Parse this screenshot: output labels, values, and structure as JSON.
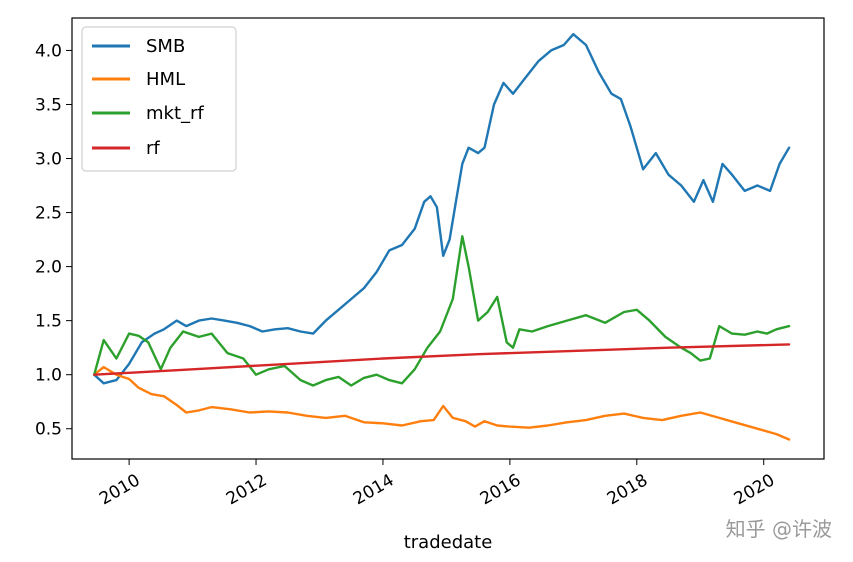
{
  "chart_data": {
    "type": "line",
    "title": "",
    "xlabel": "tradedate",
    "ylabel": "",
    "xlim": [
      2009.1,
      2020.95
    ],
    "ylim": [
      0.22,
      4.3
    ],
    "x_ticks": [
      2010,
      2012,
      2014,
      2016,
      2018,
      2020
    ],
    "x_tick_labels": [
      "2010",
      "2012",
      "2014",
      "2016",
      "2018",
      "2020"
    ],
    "y_ticks": [
      0.5,
      1.0,
      1.5,
      2.0,
      2.5,
      3.0,
      3.5,
      4.0
    ],
    "y_tick_labels": [
      "0.5",
      "1.0",
      "1.5",
      "2.0",
      "2.5",
      "3.0",
      "3.5",
      "4.0"
    ],
    "grid": false,
    "legend": "top-left",
    "series": [
      {
        "name": "SMB",
        "color": "#1f77b4",
        "x": [
          2009.45,
          2009.6,
          2009.8,
          2010.0,
          2010.2,
          2010.4,
          2010.55,
          2010.75,
          2010.9,
          2011.1,
          2011.3,
          2011.5,
          2011.7,
          2011.9,
          2012.1,
          2012.3,
          2012.5,
          2012.7,
          2012.9,
          2013.1,
          2013.3,
          2013.5,
          2013.7,
          2013.9,
          2014.1,
          2014.3,
          2014.5,
          2014.65,
          2014.75,
          2014.85,
          2014.95,
          2015.05,
          2015.15,
          2015.25,
          2015.35,
          2015.5,
          2015.6,
          2015.75,
          2015.9,
          2016.05,
          2016.25,
          2016.45,
          2016.65,
          2016.85,
          2017.0,
          2017.2,
          2017.4,
          2017.6,
          2017.75,
          2017.9,
          2018.1,
          2018.3,
          2018.5,
          2018.7,
          2018.9,
          2019.05,
          2019.2,
          2019.35,
          2019.5,
          2019.7,
          2019.9,
          2020.1,
          2020.25,
          2020.4
        ],
        "values": [
          1.0,
          0.92,
          0.95,
          1.1,
          1.3,
          1.38,
          1.42,
          1.5,
          1.45,
          1.5,
          1.52,
          1.5,
          1.48,
          1.45,
          1.4,
          1.42,
          1.43,
          1.4,
          1.38,
          1.5,
          1.6,
          1.7,
          1.8,
          1.95,
          2.15,
          2.2,
          2.35,
          2.6,
          2.65,
          2.55,
          2.1,
          2.25,
          2.6,
          2.95,
          3.1,
          3.05,
          3.1,
          3.5,
          3.7,
          3.6,
          3.75,
          3.9,
          4.0,
          4.05,
          4.15,
          4.05,
          3.8,
          3.6,
          3.55,
          3.3,
          2.9,
          3.05,
          2.85,
          2.75,
          2.6,
          2.8,
          2.6,
          2.95,
          2.85,
          2.7,
          2.75,
          2.7,
          2.95,
          3.1
        ]
      },
      {
        "name": "HML",
        "color": "#ff7f0e",
        "x": [
          2009.45,
          2009.6,
          2009.8,
          2010.0,
          2010.15,
          2010.35,
          2010.55,
          2010.75,
          2010.9,
          2011.1,
          2011.3,
          2011.6,
          2011.9,
          2012.2,
          2012.5,
          2012.8,
          2013.1,
          2013.4,
          2013.7,
          2014.0,
          2014.3,
          2014.6,
          2014.8,
          2014.95,
          2015.1,
          2015.3,
          2015.45,
          2015.6,
          2015.8,
          2016.0,
          2016.3,
          2016.6,
          2016.9,
          2017.2,
          2017.5,
          2017.8,
          2018.1,
          2018.4,
          2018.7,
          2019.0,
          2019.3,
          2019.6,
          2019.9,
          2020.2,
          2020.4
        ],
        "values": [
          1.0,
          1.07,
          1.0,
          0.96,
          0.88,
          0.82,
          0.8,
          0.72,
          0.65,
          0.67,
          0.7,
          0.68,
          0.65,
          0.66,
          0.65,
          0.62,
          0.6,
          0.62,
          0.56,
          0.55,
          0.53,
          0.57,
          0.58,
          0.71,
          0.6,
          0.57,
          0.52,
          0.57,
          0.53,
          0.52,
          0.51,
          0.53,
          0.56,
          0.58,
          0.62,
          0.64,
          0.6,
          0.58,
          0.62,
          0.65,
          0.6,
          0.55,
          0.5,
          0.45,
          0.4
        ]
      },
      {
        "name": "mkt_rf",
        "color": "#2ca02c",
        "x": [
          2009.45,
          2009.6,
          2009.8,
          2010.0,
          2010.15,
          2010.3,
          2010.5,
          2010.65,
          2010.85,
          2011.1,
          2011.3,
          2011.55,
          2011.8,
          2012.0,
          2012.2,
          2012.45,
          2012.7,
          2012.9,
          2013.1,
          2013.3,
          2013.5,
          2013.7,
          2013.9,
          2014.1,
          2014.3,
          2014.5,
          2014.7,
          2014.9,
          2015.1,
          2015.25,
          2015.35,
          2015.5,
          2015.65,
          2015.8,
          2015.95,
          2016.05,
          2016.15,
          2016.35,
          2016.6,
          2016.9,
          2017.2,
          2017.5,
          2017.8,
          2018.0,
          2018.2,
          2018.45,
          2018.7,
          2018.85,
          2019.0,
          2019.15,
          2019.3,
          2019.5,
          2019.7,
          2019.9,
          2020.05,
          2020.2,
          2020.4
        ],
        "values": [
          1.0,
          1.32,
          1.15,
          1.38,
          1.36,
          1.3,
          1.05,
          1.25,
          1.4,
          1.35,
          1.38,
          1.2,
          1.15,
          1.0,
          1.05,
          1.08,
          0.95,
          0.9,
          0.95,
          0.98,
          0.9,
          0.97,
          1.0,
          0.95,
          0.92,
          1.05,
          1.25,
          1.4,
          1.7,
          2.28,
          2.0,
          1.5,
          1.58,
          1.72,
          1.3,
          1.25,
          1.42,
          1.4,
          1.45,
          1.5,
          1.55,
          1.48,
          1.58,
          1.6,
          1.5,
          1.35,
          1.25,
          1.2,
          1.13,
          1.15,
          1.45,
          1.38,
          1.37,
          1.4,
          1.38,
          1.42,
          1.45
        ]
      },
      {
        "name": "rf",
        "color": "#d62728",
        "x": [
          2009.45,
          2011.0,
          2012.5,
          2014.0,
          2015.5,
          2017.0,
          2018.5,
          2020.4
        ],
        "values": [
          1.0,
          1.05,
          1.1,
          1.15,
          1.19,
          1.22,
          1.25,
          1.28
        ]
      }
    ]
  },
  "watermark": "知乎 @许波"
}
